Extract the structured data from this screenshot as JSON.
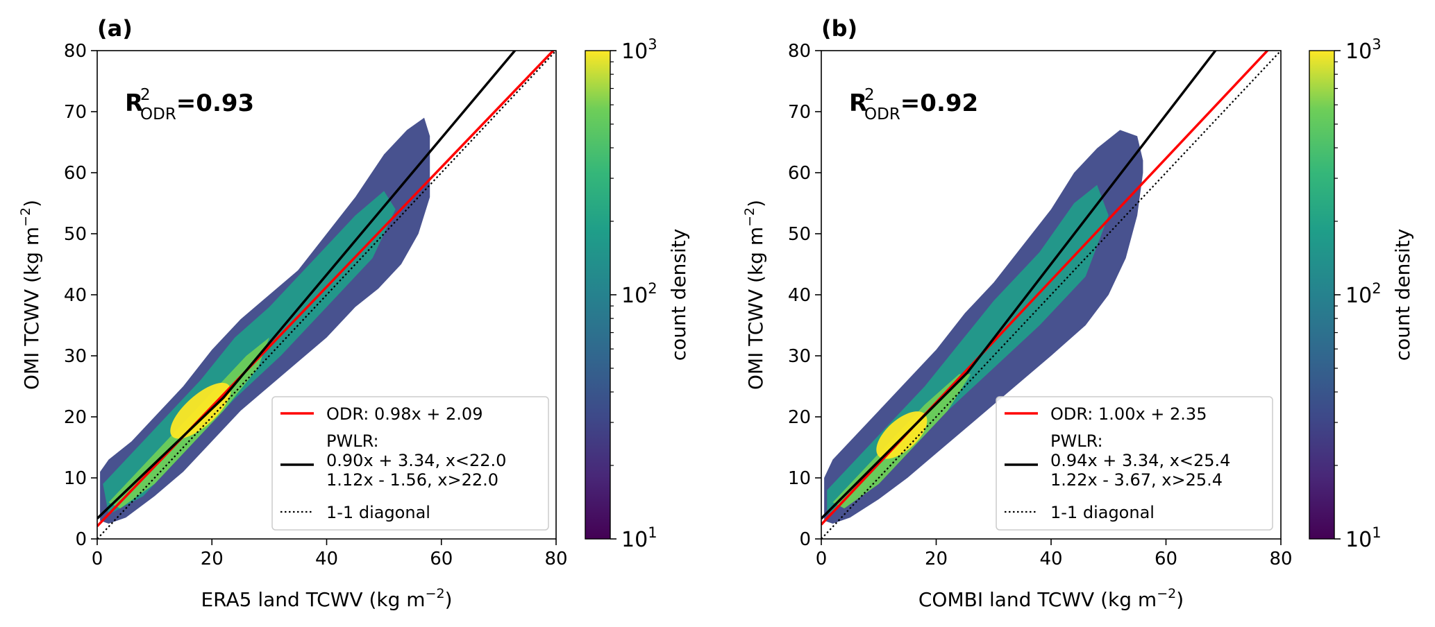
{
  "figure": {
    "colorbar_label": "count density",
    "colorbar_ticks": [
      {
        "base": "10",
        "exp": "3",
        "value": 1000
      },
      {
        "base": "10",
        "exp": "2",
        "value": 100
      },
      {
        "base": "10",
        "exp": "1",
        "value": 10
      }
    ],
    "ylabel_text": "OMI TCWV (kg m",
    "unit_tail": ")",
    "unit_exp": "−2",
    "r2_prefix": "R",
    "r2_sup": "2",
    "r2_sub": "ODR",
    "legend_odr_label": "ODR:",
    "legend_pwlr_label": "PWLR:",
    "legend_diag_label": "1-1 diagonal",
    "colors": {
      "odr": "#ff0000",
      "pwlr": "#000000",
      "diagonal": "#000000"
    }
  },
  "chart_data": [
    {
      "type": "scatter",
      "panel_label": "(a)",
      "xlabel_text": "ERA5 land TCWV (kg m",
      "xlim": [
        0,
        80
      ],
      "ylim": [
        0,
        80
      ],
      "x_ticks": [
        "0",
        "20",
        "40",
        "60",
        "80"
      ],
      "y_ticks": [
        "0",
        "10",
        "20",
        "30",
        "40",
        "50",
        "60",
        "70",
        "80"
      ],
      "r2_value": "=0.93",
      "odr": {
        "slope": 0.98,
        "intercept": 2.09,
        "text": "0.98x + 2.09"
      },
      "pwlr": {
        "breakpoint": 22.0,
        "segments": [
          {
            "slope": 0.9,
            "intercept": 3.34,
            "text": "0.90x + 3.34, x<22.0"
          },
          {
            "slope": 1.12,
            "intercept": -1.56,
            "text": "1.12x - 1.56, x>22.0"
          }
        ]
      },
      "density": {
        "x_range": [
          0.5,
          58
        ],
        "y_range": [
          2,
          70
        ],
        "peak_at": [
          18,
          21
        ]
      },
      "colorbar": {
        "scale": "log",
        "range": [
          10,
          1000
        ],
        "colormap": "viridis"
      }
    },
    {
      "type": "scatter",
      "panel_label": "(b)",
      "xlabel_text": "COMBI land TCWV (kg m",
      "xlim": [
        0,
        80
      ],
      "ylim": [
        0,
        80
      ],
      "x_ticks": [
        "0",
        "20",
        "40",
        "60",
        "80"
      ],
      "y_ticks": [
        "0",
        "10",
        "20",
        "30",
        "40",
        "50",
        "60",
        "70",
        "80"
      ],
      "r2_value": "=0.92",
      "odr": {
        "slope": 1.0,
        "intercept": 2.35,
        "text": "1.00x + 2.35"
      },
      "pwlr": {
        "breakpoint": 25.4,
        "segments": [
          {
            "slope": 0.94,
            "intercept": 3.34,
            "text": "0.94x + 3.34, x<25.4"
          },
          {
            "slope": 1.22,
            "intercept": -3.67,
            "text": "1.22x - 3.67, x>25.4"
          }
        ]
      },
      "density": {
        "x_range": [
          0.5,
          56
        ],
        "y_range": [
          2,
          67
        ],
        "peak_at": [
          14,
          17
        ]
      },
      "colorbar": {
        "scale": "log",
        "range": [
          10,
          1000
        ],
        "colormap": "viridis"
      }
    }
  ]
}
